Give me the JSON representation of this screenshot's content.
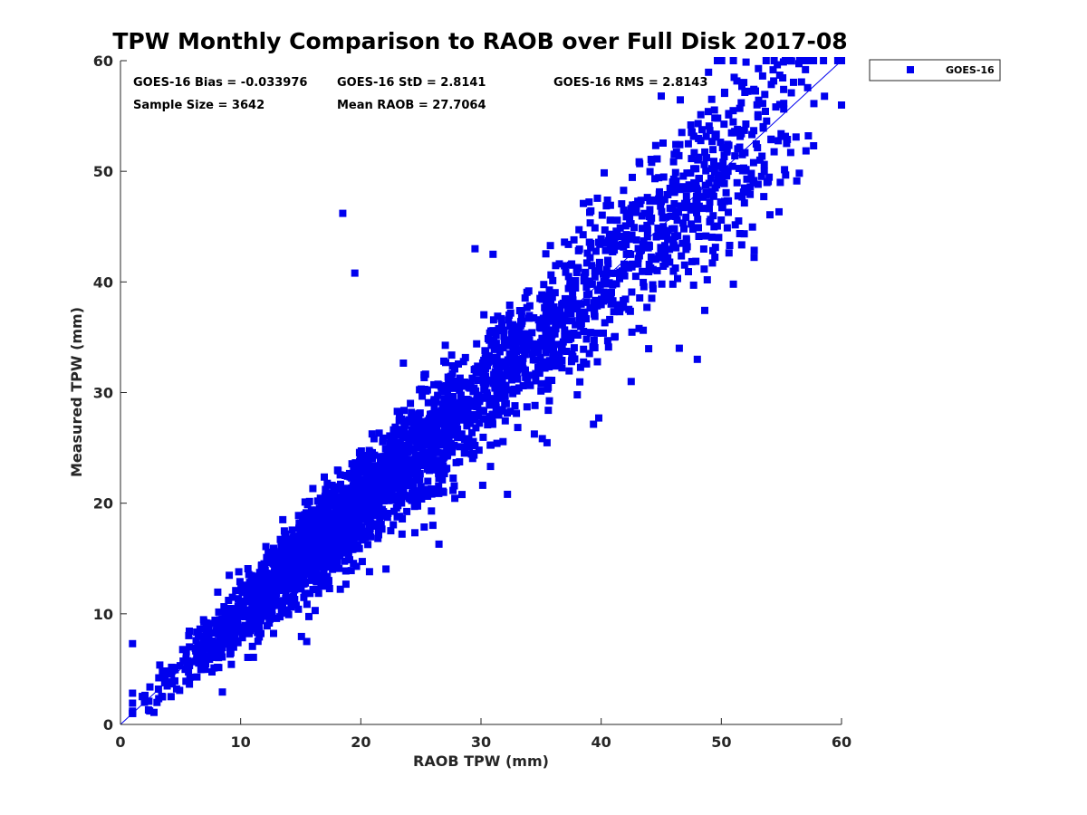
{
  "chart_data": {
    "type": "scatter",
    "title": "TPW Monthly Comparison to RAOB over Full Disk 2017-08",
    "xlabel": "RAOB TPW (mm)",
    "ylabel": "Measured TPW (mm)",
    "xlim": [
      0,
      60
    ],
    "ylim": [
      0,
      60
    ],
    "xticks": [
      "0",
      "10",
      "20",
      "30",
      "40",
      "50",
      "60"
    ],
    "yticks": [
      "0",
      "10",
      "20",
      "30",
      "40",
      "50",
      "60"
    ],
    "grid": false,
    "legend_position": "outside-top-right",
    "reference_line": {
      "label": "1:1 line",
      "from": [
        0,
        0
      ],
      "to": [
        60,
        60
      ]
    },
    "stats": {
      "bias": "GOES-16 Bias = -0.033976",
      "std": "GOES-16 StD = 2.8141",
      "rms": "GOES-16 RMS = 2.8143",
      "sample_size": "Sample Size = 3642",
      "mean_raob": "Mean RAOB = 27.7064"
    },
    "series": [
      {
        "name": "GOES-16",
        "color": "#0000ee",
        "marker": "square",
        "sample_size": 3642,
        "scatter_sigma": 2.81,
        "x_distribution": {
          "center": 27.7,
          "min": 1,
          "max": 60
        },
        "outliers": [
          [
            18.5,
            46.2
          ],
          [
            19.5,
            40.8
          ],
          [
            1.0,
            7.3
          ],
          [
            15.5,
            7.5
          ],
          [
            39.8,
            27.7
          ],
          [
            32.2,
            20.8
          ],
          [
            48.0,
            33.0
          ],
          [
            29.5,
            43.0
          ],
          [
            26.5,
            16.3
          ],
          [
            51.0,
            39.8
          ],
          [
            42.5,
            31.0
          ],
          [
            46.5,
            34.0
          ],
          [
            25.0,
            21.5
          ],
          [
            31.0,
            42.5
          ],
          [
            2.0,
            2.0
          ],
          [
            3.5,
            2.5
          ],
          [
            51.0,
            60.0
          ],
          [
            58.5,
            60.0
          ],
          [
            45.0,
            56.8
          ],
          [
            26.0,
            18.0
          ]
        ]
      }
    ]
  },
  "colors": {
    "marker": "#0000ee",
    "line": "#0000ee",
    "axes": "#262626"
  }
}
